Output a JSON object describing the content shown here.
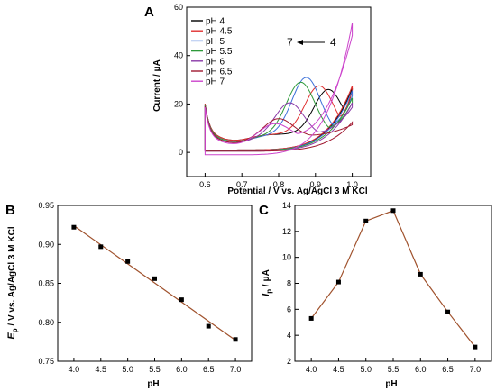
{
  "figure": {
    "panel_labels": [
      "A",
      "B",
      "C"
    ]
  },
  "chart_data": [
    {
      "panel": "A",
      "type": "line",
      "xlabel": "Potential / V vs. Ag/AgCl 3 M KCl",
      "ylabel": "Current / μA",
      "xlim": [
        0.55,
        1.05
      ],
      "ylim": [
        -10,
        60
      ],
      "xticks": [
        "0.6",
        "0.7",
        "0.8",
        "0.9",
        "1.0"
      ],
      "yticks": [
        "0",
        "20",
        "40",
        "60"
      ],
      "legend_position": "top-left",
      "annotation": {
        "left": "7",
        "right": "4"
      },
      "series": [
        {
          "name": "pH 4",
          "color": "#000000",
          "peak_x": 0.935,
          "peak_y": 26.0,
          "x_end_y": 26.0,
          "anodic_base": 7.5,
          "cathodic_min": 0.5
        },
        {
          "name": "pH 4.5",
          "color": "#e03030",
          "peak_x": 0.91,
          "peak_y": 27.5,
          "x_end_y": 27.0,
          "anodic_base": 7.5,
          "cathodic_min": 0.5
        },
        {
          "name": "pH 5",
          "color": "#3a6fd8",
          "peak_x": 0.875,
          "peak_y": 31.0,
          "x_end_y": 25.0,
          "anodic_base": 7.0,
          "cathodic_min": 0.3
        },
        {
          "name": "pH 5.5",
          "color": "#2e9a3a",
          "peak_x": 0.86,
          "peak_y": 29.0,
          "x_end_y": 22.0,
          "anodic_base": 7.0,
          "cathodic_min": 0.3
        },
        {
          "name": "pH 6",
          "color": "#8a3aa8",
          "peak_x": 0.83,
          "peak_y": 20.5,
          "x_end_y": 20.0,
          "anodic_base": 6.5,
          "cathodic_min": 0.0
        },
        {
          "name": "pH 6.5",
          "color": "#a01830",
          "peak_x": 0.8,
          "peak_y": 14.0,
          "x_end_y": 12.0,
          "anodic_base": 6.5,
          "cathodic_min": 0.0
        },
        {
          "name": "pH 7",
          "color": "#cc44cc",
          "peak_x": 0.79,
          "peak_y": 12.0,
          "x_end_y": 53.0,
          "anodic_base": 6.0,
          "cathodic_min": -1.5
        }
      ]
    },
    {
      "panel": "B",
      "type": "scatter",
      "xlabel": "pH",
      "ylabel": "Ep / V vs. Ag/AgCl 3 M KCl",
      "ylabel_main": "E",
      "ylabel_sub": "p",
      "ylabel_rest": " / V vs. Ag/AgCl 3 M KCl",
      "xlim": [
        3.7,
        7.3
      ],
      "ylim": [
        0.75,
        0.95
      ],
      "xticks": [
        "4.0",
        "4.5",
        "5.0",
        "5.5",
        "6.0",
        "6.5",
        "7.0"
      ],
      "yticks": [
        "0.75",
        "0.80",
        "0.85",
        "0.90",
        "0.95"
      ],
      "x": [
        4.0,
        4.5,
        5.0,
        5.5,
        6.0,
        6.5,
        7.0
      ],
      "y": [
        0.922,
        0.897,
        0.878,
        0.856,
        0.829,
        0.795,
        0.778
      ],
      "fit_line": {
        "x": [
          4.0,
          7.0
        ],
        "y": [
          0.924,
          0.777
        ]
      },
      "marker_color": "#000000",
      "line_color": "#a0522d"
    },
    {
      "panel": "C",
      "type": "line",
      "xlabel": "pH",
      "ylabel": "Ip / μA",
      "ylabel_main": "I",
      "ylabel_sub": "p",
      "ylabel_rest": " / μA",
      "xlim": [
        3.7,
        7.3
      ],
      "ylim": [
        2,
        14
      ],
      "xticks": [
        "4.0",
        "4.5",
        "5.0",
        "5.5",
        "6.0",
        "6.5",
        "7.0"
      ],
      "yticks": [
        "2",
        "4",
        "6",
        "8",
        "10",
        "12",
        "14"
      ],
      "x": [
        4.0,
        4.5,
        5.0,
        5.5,
        6.0,
        6.5,
        7.0
      ],
      "y": [
        5.3,
        8.1,
        12.8,
        13.6,
        8.7,
        5.8,
        3.1
      ],
      "marker_color": "#000000",
      "line_color": "#a0522d"
    }
  ]
}
